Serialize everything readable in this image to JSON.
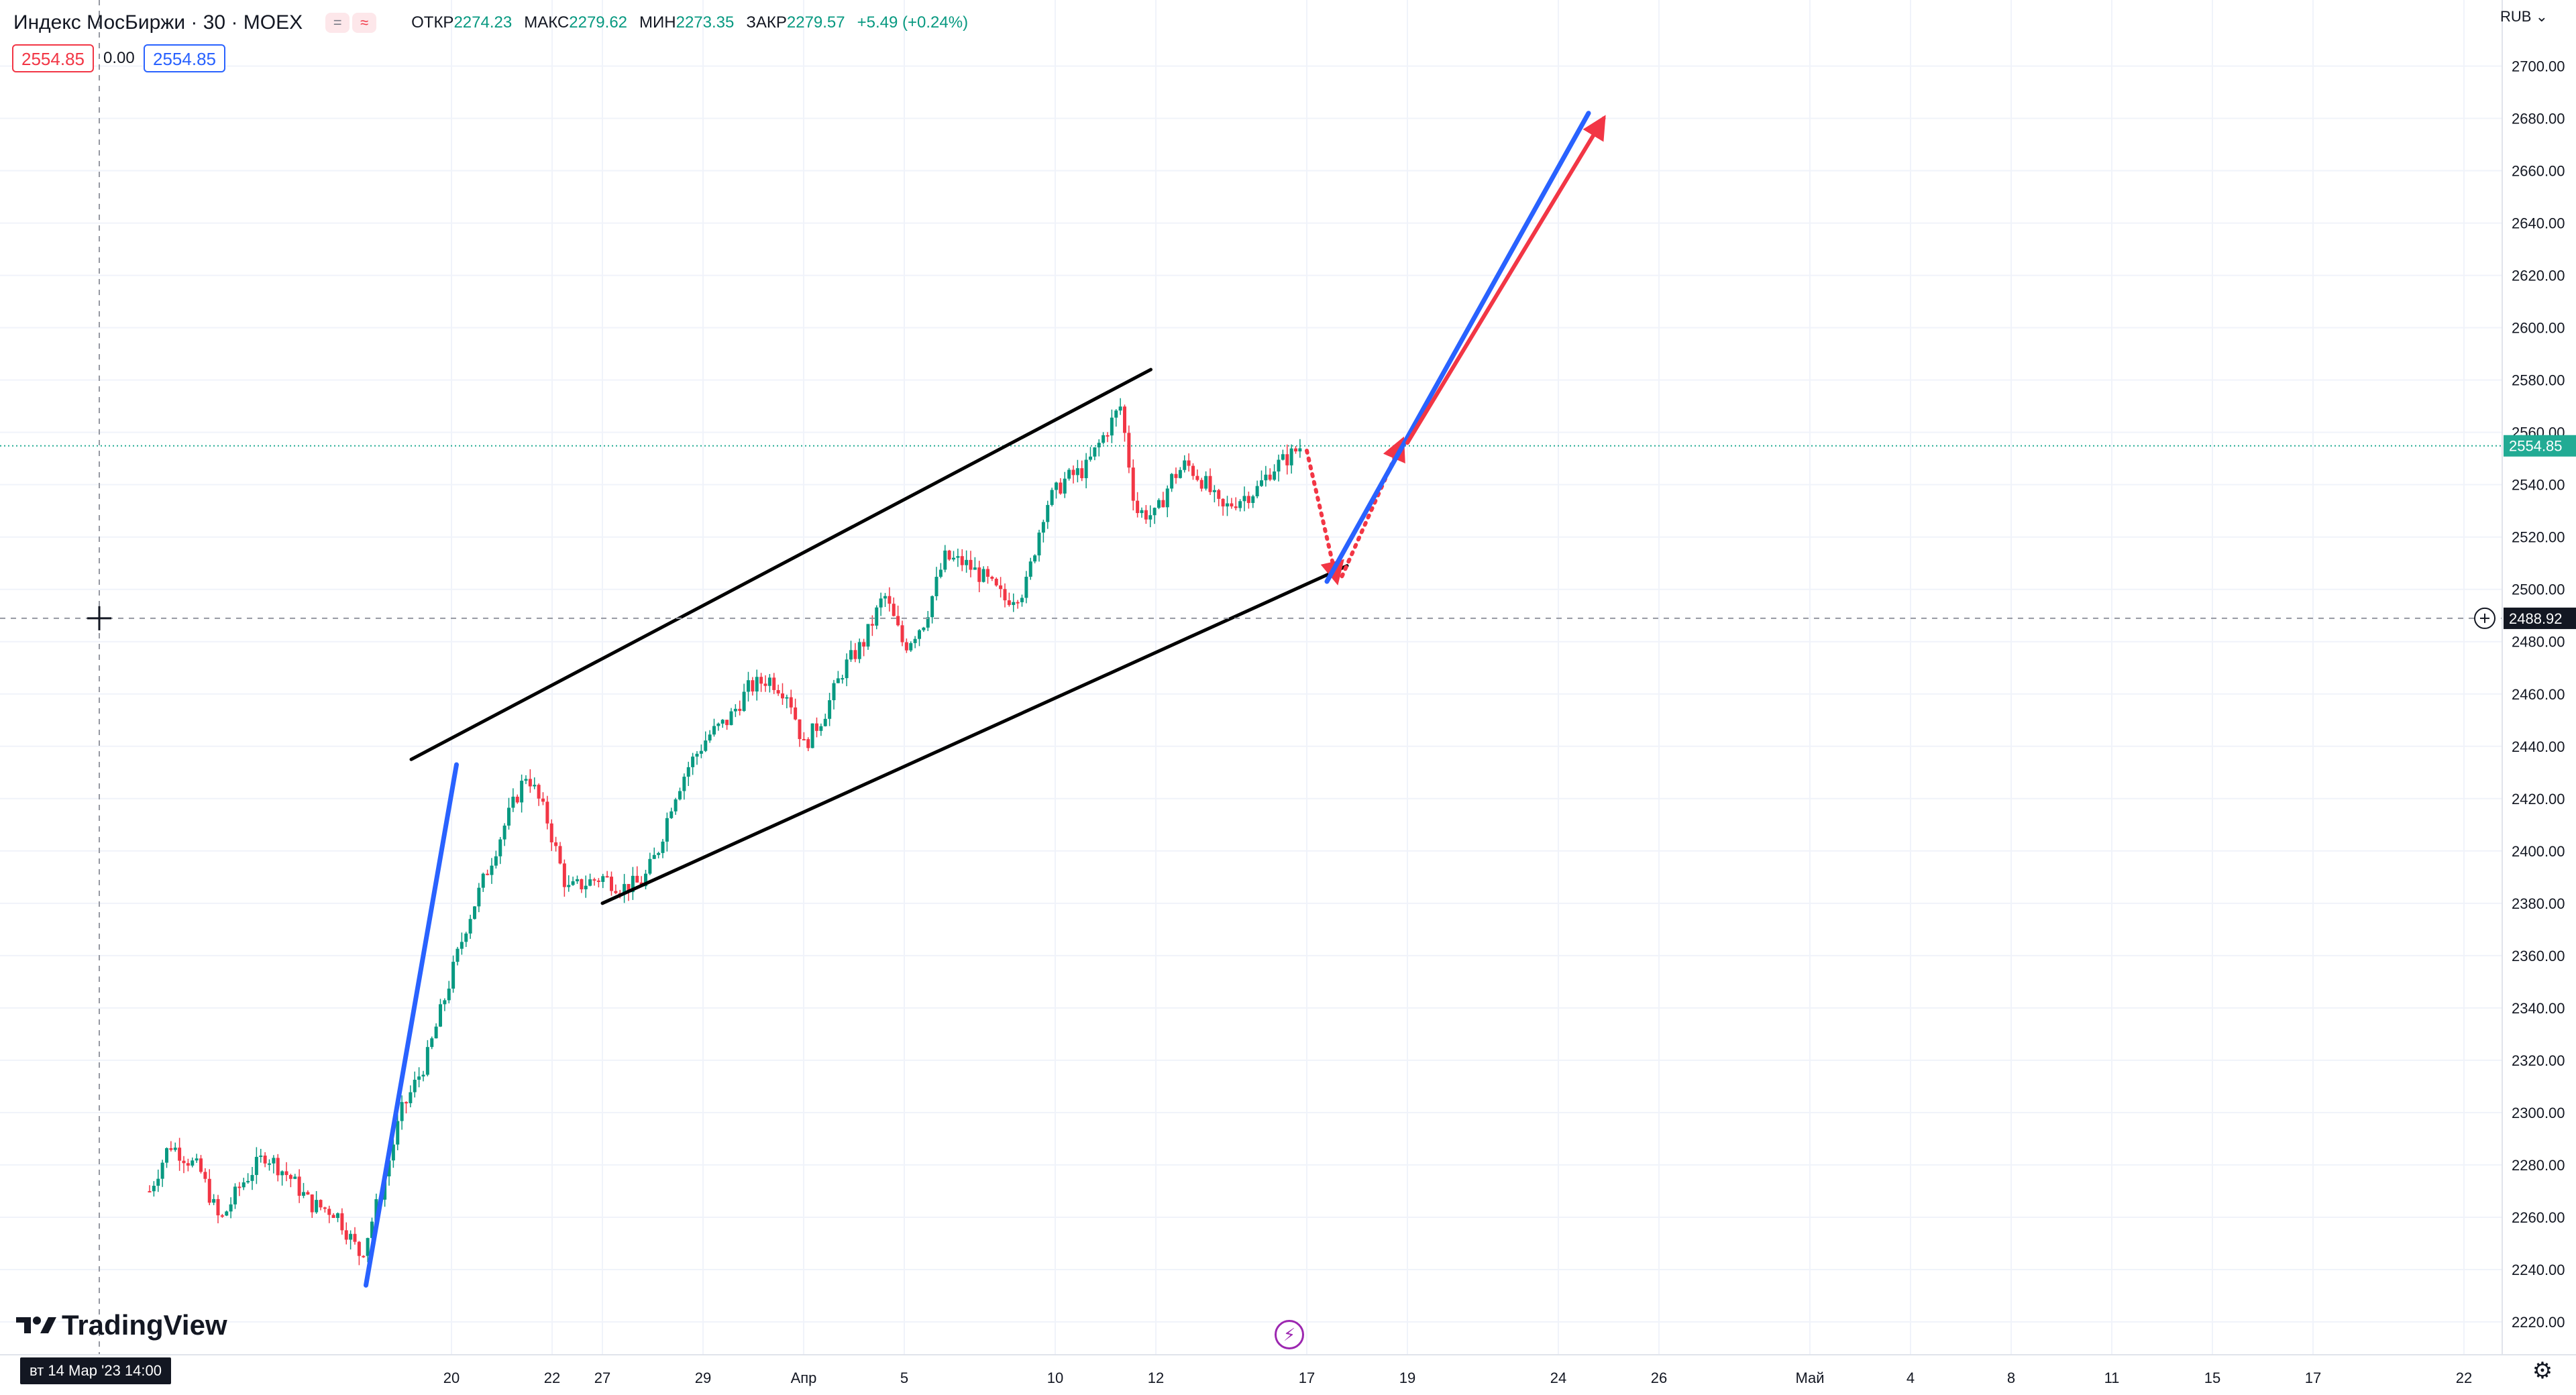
{
  "header": {
    "symbol": "Индекс МосБиржи · 30 · MOEX",
    "indicator_buttons": [
      "=",
      "≈"
    ],
    "ohlc": [
      {
        "label": "ОТКР",
        "value": "2274.23"
      },
      {
        "label": "МАКС",
        "value": "2279.62"
      },
      {
        "label": "МИН",
        "value": "2273.35"
      },
      {
        "label": "ЗАКР",
        "value": "2279.57"
      }
    ],
    "change": "+5.49 (+0.24%)",
    "sell_price": "2554.85",
    "spread": "0.00",
    "buy_price": "2554.85"
  },
  "currency": "RUB",
  "crosshair": {
    "price_label": "2488.92",
    "date_label": "вт 14 Мар '23   14:00"
  },
  "last_price_label": "2554.85",
  "branding": "TradingView",
  "colors": {
    "up": "#089981",
    "down": "#f23645",
    "trend_blue": "#2962ff",
    "arrow_red": "#f23645",
    "channel": "#000000",
    "grid": "#f0f3fa",
    "last_price": "#22ab94",
    "event_marker": "#9c27b0"
  },
  "chart_data": {
    "type": "candlestick",
    "instrument": "Индекс МосБиржи",
    "interval": "30",
    "ylim": [
      2210,
      2715
    ],
    "y_ticks": [
      2220,
      2240,
      2260,
      2280,
      2300,
      2320,
      2340,
      2360,
      2380,
      2400,
      2420,
      2440,
      2460,
      2480,
      2500,
      2520,
      2540,
      2560,
      2580,
      2600,
      2620,
      2640,
      2660,
      2680,
      2700
    ],
    "x_ticks": [
      {
        "label": "20",
        "pos": 7
      },
      {
        "label": "22",
        "pos": 9
      },
      {
        "label": "27",
        "pos": 10
      },
      {
        "label": "29",
        "pos": 12
      },
      {
        "label": "Апр",
        "pos": 14
      },
      {
        "label": "5",
        "pos": 16
      },
      {
        "label": "10",
        "pos": 19
      },
      {
        "label": "12",
        "pos": 21
      },
      {
        "label": "17",
        "pos": 24
      },
      {
        "label": "19",
        "pos": 26
      },
      {
        "label": "24",
        "pos": 29
      },
      {
        "label": "26",
        "pos": 31
      },
      {
        "label": "Май",
        "pos": 34
      },
      {
        "label": "4",
        "pos": 36
      },
      {
        "label": "8",
        "pos": 38
      },
      {
        "label": "11",
        "pos": 40
      },
      {
        "label": "15",
        "pos": 42
      },
      {
        "label": "17",
        "pos": 44
      },
      {
        "label": "22",
        "pos": 47
      }
    ],
    "x_range": [
      1,
      49
    ],
    "last_price": 2554.85,
    "crosshair_price": 2488.92,
    "price_path": [
      [
        1.0,
        2270
      ],
      [
        1.4,
        2288
      ],
      [
        2.0,
        2278
      ],
      [
        2.4,
        2258
      ],
      [
        2.8,
        2272
      ],
      [
        3.3,
        2284
      ],
      [
        3.8,
        2275
      ],
      [
        4.2,
        2265
      ],
      [
        4.7,
        2262
      ],
      [
        5.2,
        2245
      ],
      [
        5.6,
        2270
      ],
      [
        6.0,
        2300
      ],
      [
        6.5,
        2320
      ],
      [
        6.9,
        2346
      ],
      [
        7.3,
        2372
      ],
      [
        7.7,
        2392
      ],
      [
        8.1,
        2412
      ],
      [
        8.5,
        2430
      ],
      [
        8.9,
        2412
      ],
      [
        9.3,
        2385
      ],
      [
        9.7,
        2388
      ],
      [
        10.0,
        2390
      ],
      [
        10.4,
        2386
      ],
      [
        10.8,
        2388
      ],
      [
        11.1,
        2400
      ],
      [
        11.4,
        2420
      ],
      [
        11.7,
        2432
      ],
      [
        12.1,
        2444
      ],
      [
        12.5,
        2450
      ],
      [
        12.9,
        2462
      ],
      [
        13.3,
        2466
      ],
      [
        13.7,
        2460
      ],
      [
        14.0,
        2440
      ],
      [
        14.4,
        2452
      ],
      [
        14.8,
        2470
      ],
      [
        15.2,
        2480
      ],
      [
        15.6,
        2498
      ],
      [
        16.0,
        2478
      ],
      [
        16.4,
        2488
      ],
      [
        16.8,
        2512
      ],
      [
        17.2,
        2510
      ],
      [
        17.6,
        2504
      ],
      [
        18.0,
        2496
      ],
      [
        18.4,
        2500
      ],
      [
        18.8,
        2532
      ],
      [
        19.2,
        2542
      ],
      [
        19.6,
        2546
      ],
      [
        20.0,
        2560
      ],
      [
        20.3,
        2570
      ],
      [
        20.6,
        2530
      ],
      [
        21.0,
        2528
      ],
      [
        21.3,
        2542
      ],
      [
        21.6,
        2548
      ],
      [
        22.0,
        2540
      ],
      [
        22.3,
        2530
      ],
      [
        22.6,
        2534
      ],
      [
        23.0,
        2538
      ],
      [
        23.3,
        2546
      ],
      [
        23.6,
        2550
      ],
      [
        23.9,
        2555
      ]
    ],
    "drawings": [
      {
        "type": "trendline",
        "color": "blue",
        "from": [
          5.3,
          2234
        ],
        "to": [
          7.1,
          2433
        ]
      },
      {
        "type": "trendline",
        "color": "black",
        "role": "channel-top",
        "from": [
          6.2,
          2435
        ],
        "to": [
          20.9,
          2584
        ]
      },
      {
        "type": "trendline",
        "color": "black",
        "role": "channel-bottom",
        "from": [
          10.0,
          2380
        ],
        "to": [
          24.8,
          2509
        ]
      },
      {
        "type": "dotted-arrow",
        "color": "red",
        "from": [
          24.0,
          2553
        ],
        "to": [
          24.6,
          2503
        ]
      },
      {
        "type": "dotted-arrow",
        "color": "red",
        "from": [
          24.7,
          2505
        ],
        "to": [
          25.9,
          2557
        ]
      },
      {
        "type": "trendline",
        "color": "blue",
        "from": [
          24.4,
          2503
        ],
        "to": [
          29.6,
          2682
        ]
      },
      {
        "type": "arrow",
        "color": "red",
        "from": [
          26.0,
          2556
        ],
        "to": [
          29.9,
          2680
        ]
      }
    ]
  }
}
